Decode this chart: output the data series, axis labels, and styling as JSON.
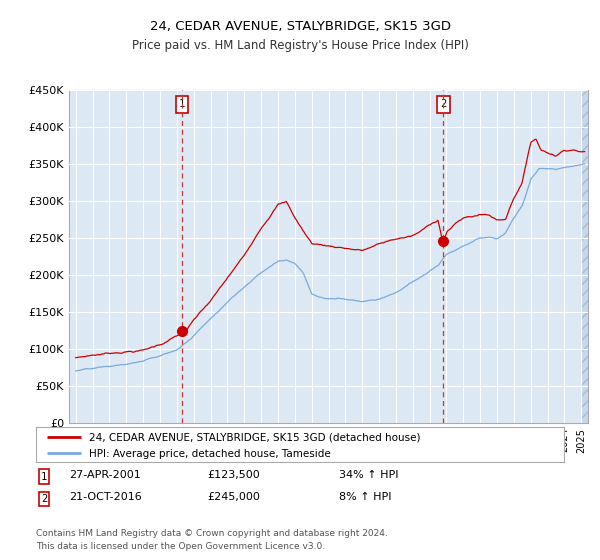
{
  "title": "24, CEDAR AVENUE, STALYBRIDGE, SK15 3GD",
  "subtitle": "Price paid vs. HM Land Registry's House Price Index (HPI)",
  "red_label": "24, CEDAR AVENUE, STALYBRIDGE, SK15 3GD (detached house)",
  "blue_label": "HPI: Average price, detached house, Tameside",
  "annotation1": {
    "num": "1",
    "date": "27-APR-2001",
    "price": "£123,500",
    "hpi": "34% ↑ HPI"
  },
  "annotation2": {
    "num": "2",
    "date": "21-OCT-2016",
    "price": "£245,000",
    "hpi": "8% ↑ HPI"
  },
  "footnote1": "Contains HM Land Registry data © Crown copyright and database right 2024.",
  "footnote2": "This data is licensed under the Open Government Licence v3.0.",
  "ylim": [
    0,
    450000
  ],
  "yticks": [
    0,
    50000,
    100000,
    150000,
    200000,
    250000,
    300000,
    350000,
    400000,
    450000
  ],
  "xlim_left": 1994.6,
  "xlim_right": 2025.4,
  "bg_color": "#dce9f5",
  "grid_color": "#ffffff",
  "red_color": "#cc0000",
  "blue_color": "#7aaadd",
  "marker_color": "#cc0000",
  "vline_color": "#cc3333",
  "point1_x": 2001.32,
  "point1_y": 123500,
  "point2_x": 2016.81,
  "point2_y": 245000,
  "hatch_start": 2025.0
}
